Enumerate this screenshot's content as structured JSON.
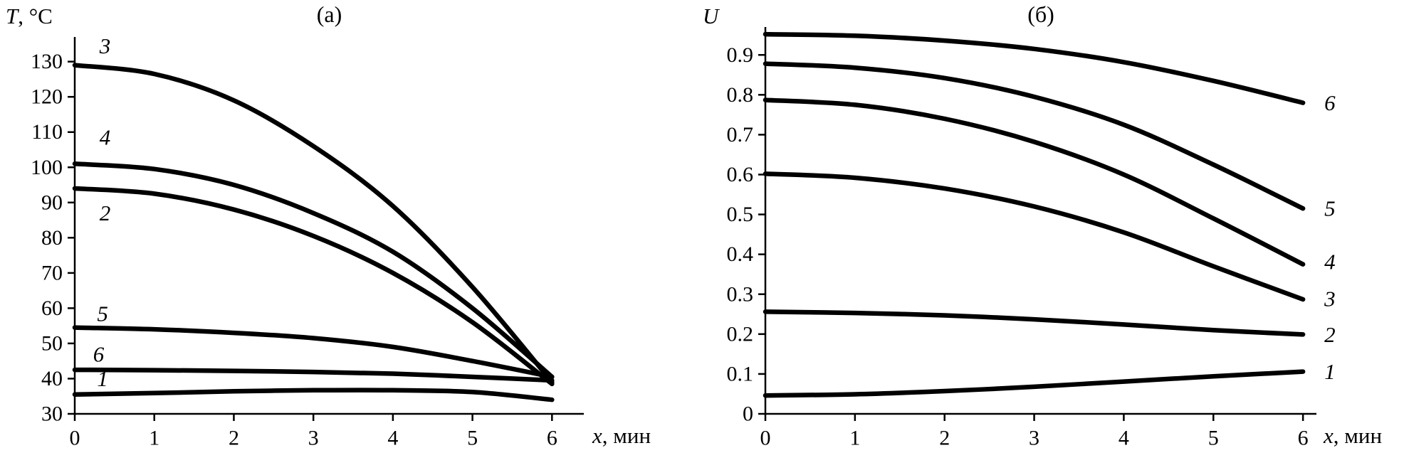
{
  "figure": {
    "background": "#ffffff",
    "ink": "#000000"
  },
  "chart_data": [
    {
      "type": "line",
      "panel_label": "(а)",
      "ylabel": "T, °C",
      "ylabel_var": "T",
      "ylabel_rest": ", °C",
      "xlabel": "x, мин",
      "xlabel_var": "x",
      "xlabel_rest": ", мин",
      "xlim": [
        0,
        6.4
      ],
      "ylim": [
        30,
        137
      ],
      "grid": false,
      "legend_position": "curve numbers annotated on plot",
      "x_ticks": [
        0,
        1,
        2,
        3,
        4,
        5,
        6
      ],
      "x_tick_labels": [
        "0",
        "1",
        "2",
        "3",
        "4",
        "5",
        "6"
      ],
      "y_ticks": [
        30,
        40,
        50,
        60,
        70,
        80,
        90,
        100,
        110,
        120,
        130
      ],
      "y_tick_labels": [
        "30",
        "40",
        "50",
        "60",
        "70",
        "80",
        "90",
        "100",
        "110",
        "120",
        "130"
      ],
      "x": [
        0,
        1,
        2,
        3,
        4,
        5,
        6
      ],
      "series": [
        {
          "name": "1",
          "values": [
            35.5,
            35.9,
            36.4,
            36.7,
            36.7,
            36.2,
            34.0
          ],
          "label": {
            "x": 0.35,
            "y": 40.0
          }
        },
        {
          "name": "2",
          "values": [
            94,
            92.5,
            88,
            80.5,
            70,
            56,
            38.5
          ],
          "label": {
            "x": 0.38,
            "y": 87
          }
        },
        {
          "name": "3",
          "values": [
            129,
            126.5,
            119,
            106,
            89,
            66,
            39
          ],
          "label": {
            "x": 0.38,
            "y": 134.5
          }
        },
        {
          "name": "4",
          "values": [
            101,
            99.5,
            95,
            87,
            76,
            60,
            40.5
          ],
          "label": {
            "x": 0.38,
            "y": 108.5
          }
        },
        {
          "name": "5",
          "values": [
            54.5,
            54,
            53,
            51.5,
            49,
            45,
            40.5
          ],
          "label": {
            "x": 0.35,
            "y": 58.5
          }
        },
        {
          "name": "6",
          "values": [
            42.5,
            42.4,
            42.2,
            41.9,
            41.4,
            40.5,
            39.5
          ],
          "label": {
            "x": 0.3,
            "y": 47.0
          }
        }
      ]
    },
    {
      "type": "line",
      "panel_label": "(б)",
      "ylabel": "U",
      "ylabel_var": "U",
      "ylabel_rest": "",
      "xlabel": "x, мин",
      "xlabel_var": "x",
      "xlabel_rest": ", мин",
      "xlim": [
        0,
        6.15
      ],
      "ylim": [
        0,
        0.97
      ],
      "grid": false,
      "legend_position": "curve numbers annotated at right ends of curves",
      "x_ticks": [
        0,
        1,
        2,
        3,
        4,
        5,
        6
      ],
      "x_tick_labels": [
        "0",
        "1",
        "2",
        "3",
        "4",
        "5",
        "6"
      ],
      "y_ticks": [
        0,
        0.1,
        0.2,
        0.3,
        0.4,
        0.5,
        0.6,
        0.7,
        0.8,
        0.9
      ],
      "y_tick_labels": [
        "0",
        "0.1",
        "0.2",
        "0.3",
        "0.4",
        "0.5",
        "0.6",
        "0.7",
        "0.8",
        "0.9"
      ],
      "x": [
        0,
        1,
        2,
        3,
        4,
        5,
        6
      ],
      "series": [
        {
          "name": "1",
          "values": [
            0.046,
            0.049,
            0.057,
            0.068,
            0.081,
            0.094,
            0.106
          ],
          "label": {
            "x": 6.3,
            "y": 0.106
          }
        },
        {
          "name": "2",
          "values": [
            0.256,
            0.253,
            0.247,
            0.237,
            0.224,
            0.21,
            0.199
          ],
          "label": {
            "x": 6.3,
            "y": 0.199
          }
        },
        {
          "name": "3",
          "values": [
            0.602,
            0.592,
            0.565,
            0.52,
            0.455,
            0.37,
            0.287
          ],
          "label": {
            "x": 6.3,
            "y": 0.289
          }
        },
        {
          "name": "4",
          "values": [
            0.787,
            0.775,
            0.74,
            0.682,
            0.6,
            0.49,
            0.375
          ],
          "label": {
            "x": 6.3,
            "y": 0.382
          }
        },
        {
          "name": "5",
          "values": [
            0.878,
            0.868,
            0.842,
            0.795,
            0.725,
            0.625,
            0.515
          ],
          "label": {
            "x": 6.3,
            "y": 0.515
          }
        },
        {
          "name": "6",
          "values": [
            0.952,
            0.948,
            0.936,
            0.915,
            0.882,
            0.835,
            0.78
          ],
          "label": {
            "x": 6.3,
            "y": 0.78
          }
        }
      ]
    }
  ]
}
